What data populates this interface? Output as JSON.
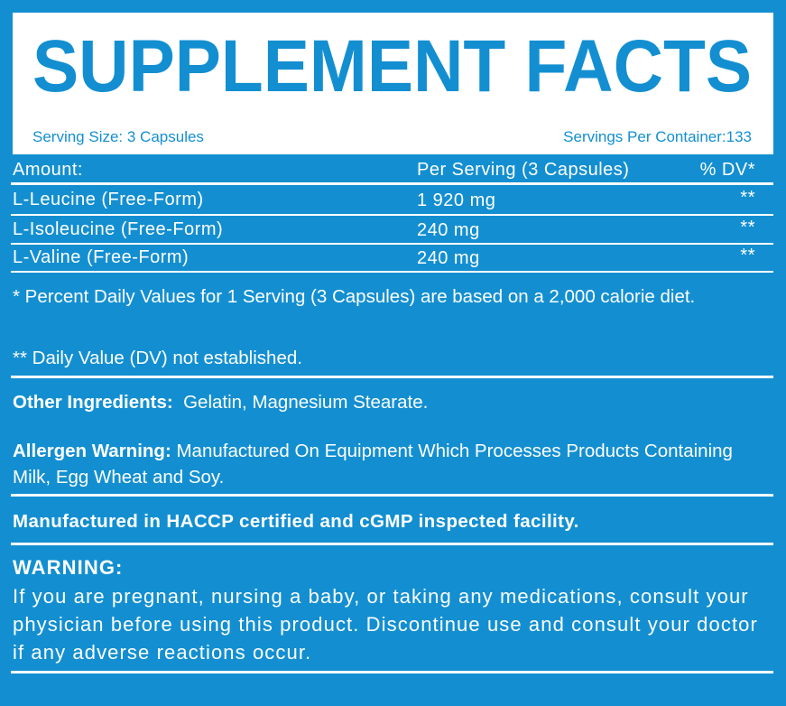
{
  "header": {
    "title": "SUPPLEMENT FACTS",
    "serving_size": "Serving Size: 3 Capsules",
    "servings_per_container": "Servings Per Container:133"
  },
  "table": {
    "columns": [
      "Amount:",
      "Per Serving (3 Capsules)",
      "% DV*"
    ],
    "rows": [
      [
        "L-Leucine (Free-Form)",
        "1 920 mg",
        "**"
      ],
      [
        "L-Isoleucine (Free-Form)",
        "240 mg",
        "**"
      ],
      [
        "L-Valine (Free-Form)",
        "240 mg",
        "**"
      ]
    ]
  },
  "footnotes": [
    "* Percent Daily Values for 1 Serving (3 Capsules) are based on a 2,000 calorie diet.",
    "** Daily Value (DV) not established."
  ],
  "other_ingredients": {
    "label": "Other Ingredients:",
    "text": "Gelatin, Magnesium Stearate."
  },
  "allergen_warning": {
    "label": "Allergen Warning:",
    "text": "Manufactured On Equipment Which Processes Products Containing Milk, Egg Wheat and Soy."
  },
  "manufacturing": "Manufactured in HACCP certified and cGMP inspected facility.",
  "warning": {
    "title": "WARNING:",
    "text": "If you are pregnant, nursing a baby, or taking any medications, consult your physician before using this product. Discontinue use and consult your doctor if any adverse reactions occur."
  }
}
